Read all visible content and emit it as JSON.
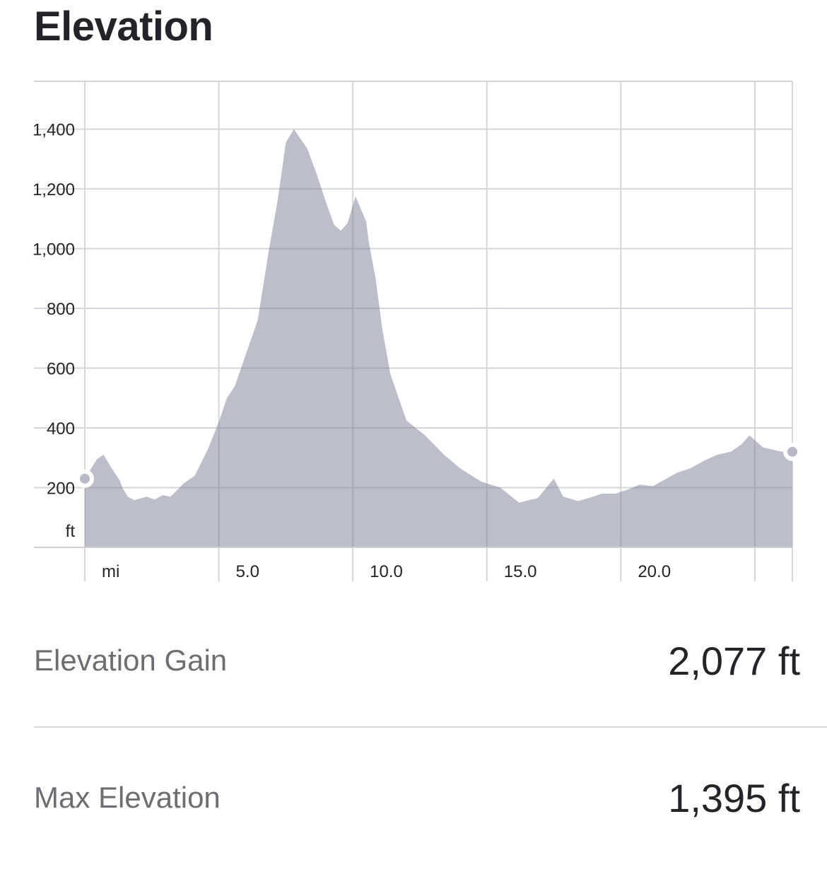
{
  "header": {
    "title": "Elevation"
  },
  "stats": {
    "gain_label": "Elevation Gain",
    "gain_value": "2,077 ft",
    "max_label": "Max Elevation",
    "max_value": "1,395 ft"
  },
  "colors": {
    "fill": "#b9b9c6",
    "grid": "#d6d6da",
    "text": "#242428",
    "muted": "#6d6d72"
  },
  "chart_data": {
    "type": "area",
    "xlabel": "mi",
    "ylabel": "ft",
    "xlim": [
      0,
      26.4
    ],
    "ylim": [
      0,
      1560
    ],
    "grid": true,
    "x_ticks": [
      0,
      5,
      10,
      15,
      20,
      25
    ],
    "x_tick_labels": [
      "mi",
      "5.0",
      "10.0",
      "15.0",
      "20.0",
      ""
    ],
    "y_ticks": [
      200,
      400,
      600,
      800,
      1000,
      1200,
      1400
    ],
    "y_tick_labels": [
      "200",
      "400",
      "600",
      "800",
      "1,000",
      "1,200",
      "1,400"
    ],
    "series": [
      {
        "x": [
          0,
          0.45,
          0.7,
          1.0,
          1.3,
          1.4,
          1.6,
          1.85,
          2.3,
          2.6,
          2.9,
          3.2,
          3.7,
          4.1,
          4.6,
          5.0,
          5.3,
          5.6,
          6.1,
          6.45,
          6.85,
          7.2,
          7.5,
          7.8,
          8.3,
          8.65,
          9.0,
          9.3,
          9.55,
          9.8,
          10.1,
          10.5,
          10.6,
          10.85,
          11.1,
          11.4,
          12.0,
          12.7,
          13.4,
          14.0,
          14.8,
          15.5,
          16.2,
          16.9,
          17.5,
          17.85,
          18.4,
          18.8,
          19.3,
          19.8,
          20.3,
          20.7,
          21.2,
          21.5,
          22.1,
          22.6,
          23.1,
          23.6,
          24.1,
          24.5,
          24.8,
          25.3,
          26.0,
          26.4
        ],
        "y": [
          230,
          295,
          310,
          265,
          225,
          200,
          170,
          158,
          170,
          160,
          175,
          170,
          215,
          240,
          330,
          420,
          500,
          540,
          670,
          760,
          985,
          1165,
          1355,
          1400,
          1335,
          1250,
          1155,
          1080,
          1060,
          1085,
          1175,
          1090,
          1020,
          900,
          730,
          580,
          425,
          375,
          310,
          265,
          220,
          200,
          150,
          165,
          230,
          170,
          155,
          165,
          180,
          180,
          195,
          210,
          205,
          220,
          250,
          265,
          290,
          310,
          320,
          345,
          375,
          335,
          320,
          320
        ]
      }
    ],
    "start_value_ft": 230,
    "end_value_ft": 320
  }
}
